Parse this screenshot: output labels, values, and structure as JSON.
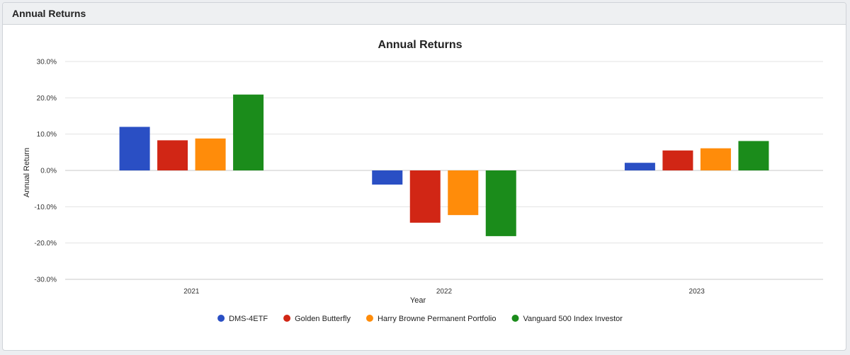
{
  "panel": {
    "title": "Annual Returns"
  },
  "chart_data": {
    "type": "bar",
    "title": "Annual Returns",
    "xlabel": "Year",
    "ylabel": "Annual Return",
    "categories": [
      "2021",
      "2022",
      "2023"
    ],
    "ylim": [
      -30,
      30
    ],
    "yticks": [
      30,
      20,
      10,
      0,
      -10,
      -20,
      -30
    ],
    "ytick_labels": [
      "30.0%",
      "20.0%",
      "10.0%",
      "0.0%",
      "-10.0%",
      "-20.0%",
      "-30.0%"
    ],
    "grid": true,
    "legend_position": "bottom",
    "series": [
      {
        "name": "DMS-4ETF",
        "color": "#2a4fc4",
        "values": [
          12.0,
          -3.9,
          2.1
        ]
      },
      {
        "name": "Golden Butterfly",
        "color": "#d12615",
        "values": [
          8.3,
          -14.4,
          5.5
        ]
      },
      {
        "name": "Harry Browne Permanent Portfolio",
        "color": "#ff8c0a",
        "values": [
          8.8,
          -12.3,
          6.1
        ]
      },
      {
        "name": "Vanguard 500 Index Investor",
        "color": "#1b8c1b",
        "values": [
          20.9,
          -18.1,
          8.1
        ]
      }
    ]
  }
}
